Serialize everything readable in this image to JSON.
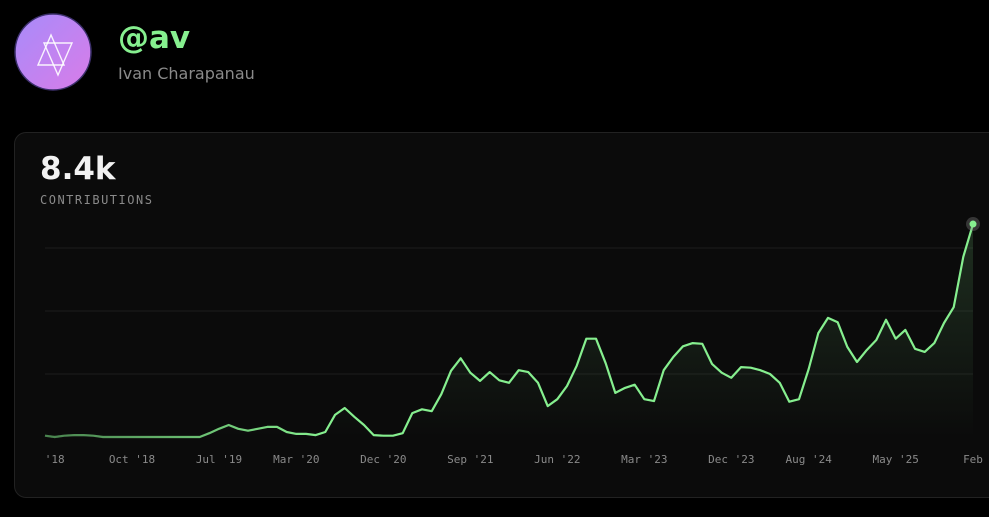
{
  "profile": {
    "handle": "@av",
    "name": "Ivan Charapanau"
  },
  "chart_data": {
    "type": "line",
    "title": "8.4k",
    "subtitle": "CONTRIBUTIONS",
    "categories": [
      null,
      "'18",
      null,
      null,
      null,
      null,
      null,
      null,
      null,
      "Oct '18",
      null,
      null,
      null,
      null,
      null,
      null,
      null,
      null,
      "Jul '19",
      null,
      null,
      null,
      null,
      null,
      null,
      null,
      "Mar '20",
      null,
      null,
      null,
      null,
      null,
      null,
      null,
      null,
      "Dec '20",
      null,
      null,
      null,
      null,
      null,
      null,
      null,
      null,
      "Sep '21",
      null,
      null,
      null,
      null,
      null,
      null,
      null,
      null,
      "Jun '22",
      null,
      null,
      null,
      null,
      null,
      null,
      null,
      null,
      "Mar '23",
      null,
      null,
      null,
      null,
      null,
      null,
      null,
      null,
      "Dec '23",
      null,
      null,
      null,
      null,
      null,
      null,
      null,
      "Aug '24",
      null,
      null,
      null,
      null,
      null,
      null,
      null,
      null,
      "May '25",
      null,
      null,
      null,
      null,
      null,
      null,
      null,
      "Feb"
    ],
    "series": [
      {
        "color": "#86ef8f",
        "values": [
          2,
          0,
          2,
          3,
          3,
          2,
          0,
          0,
          0,
          0,
          0,
          0,
          0,
          0,
          0,
          0,
          0,
          6,
          13,
          19,
          13,
          10,
          13,
          16,
          16,
          8,
          5,
          5,
          3,
          8,
          35,
          46,
          32,
          19,
          3,
          2,
          2,
          6,
          38,
          44,
          41,
          68,
          105,
          125,
          102,
          89,
          103,
          90,
          86,
          106,
          103,
          86,
          49,
          60,
          81,
          113,
          156,
          156,
          117,
          70,
          78,
          83,
          60,
          57,
          106,
          127,
          144,
          149,
          148,
          116,
          102,
          94,
          111,
          110,
          106,
          100,
          86,
          56,
          60,
          108,
          165,
          189,
          182,
          143,
          119,
          138,
          154,
          186,
          156,
          170,
          140,
          135,
          149,
          181,
          206,
          286,
          338
        ]
      }
    ],
    "ylim": [
      0,
      340
    ],
    "yticks": [
      100,
      200,
      300
    ],
    "grid": true
  }
}
